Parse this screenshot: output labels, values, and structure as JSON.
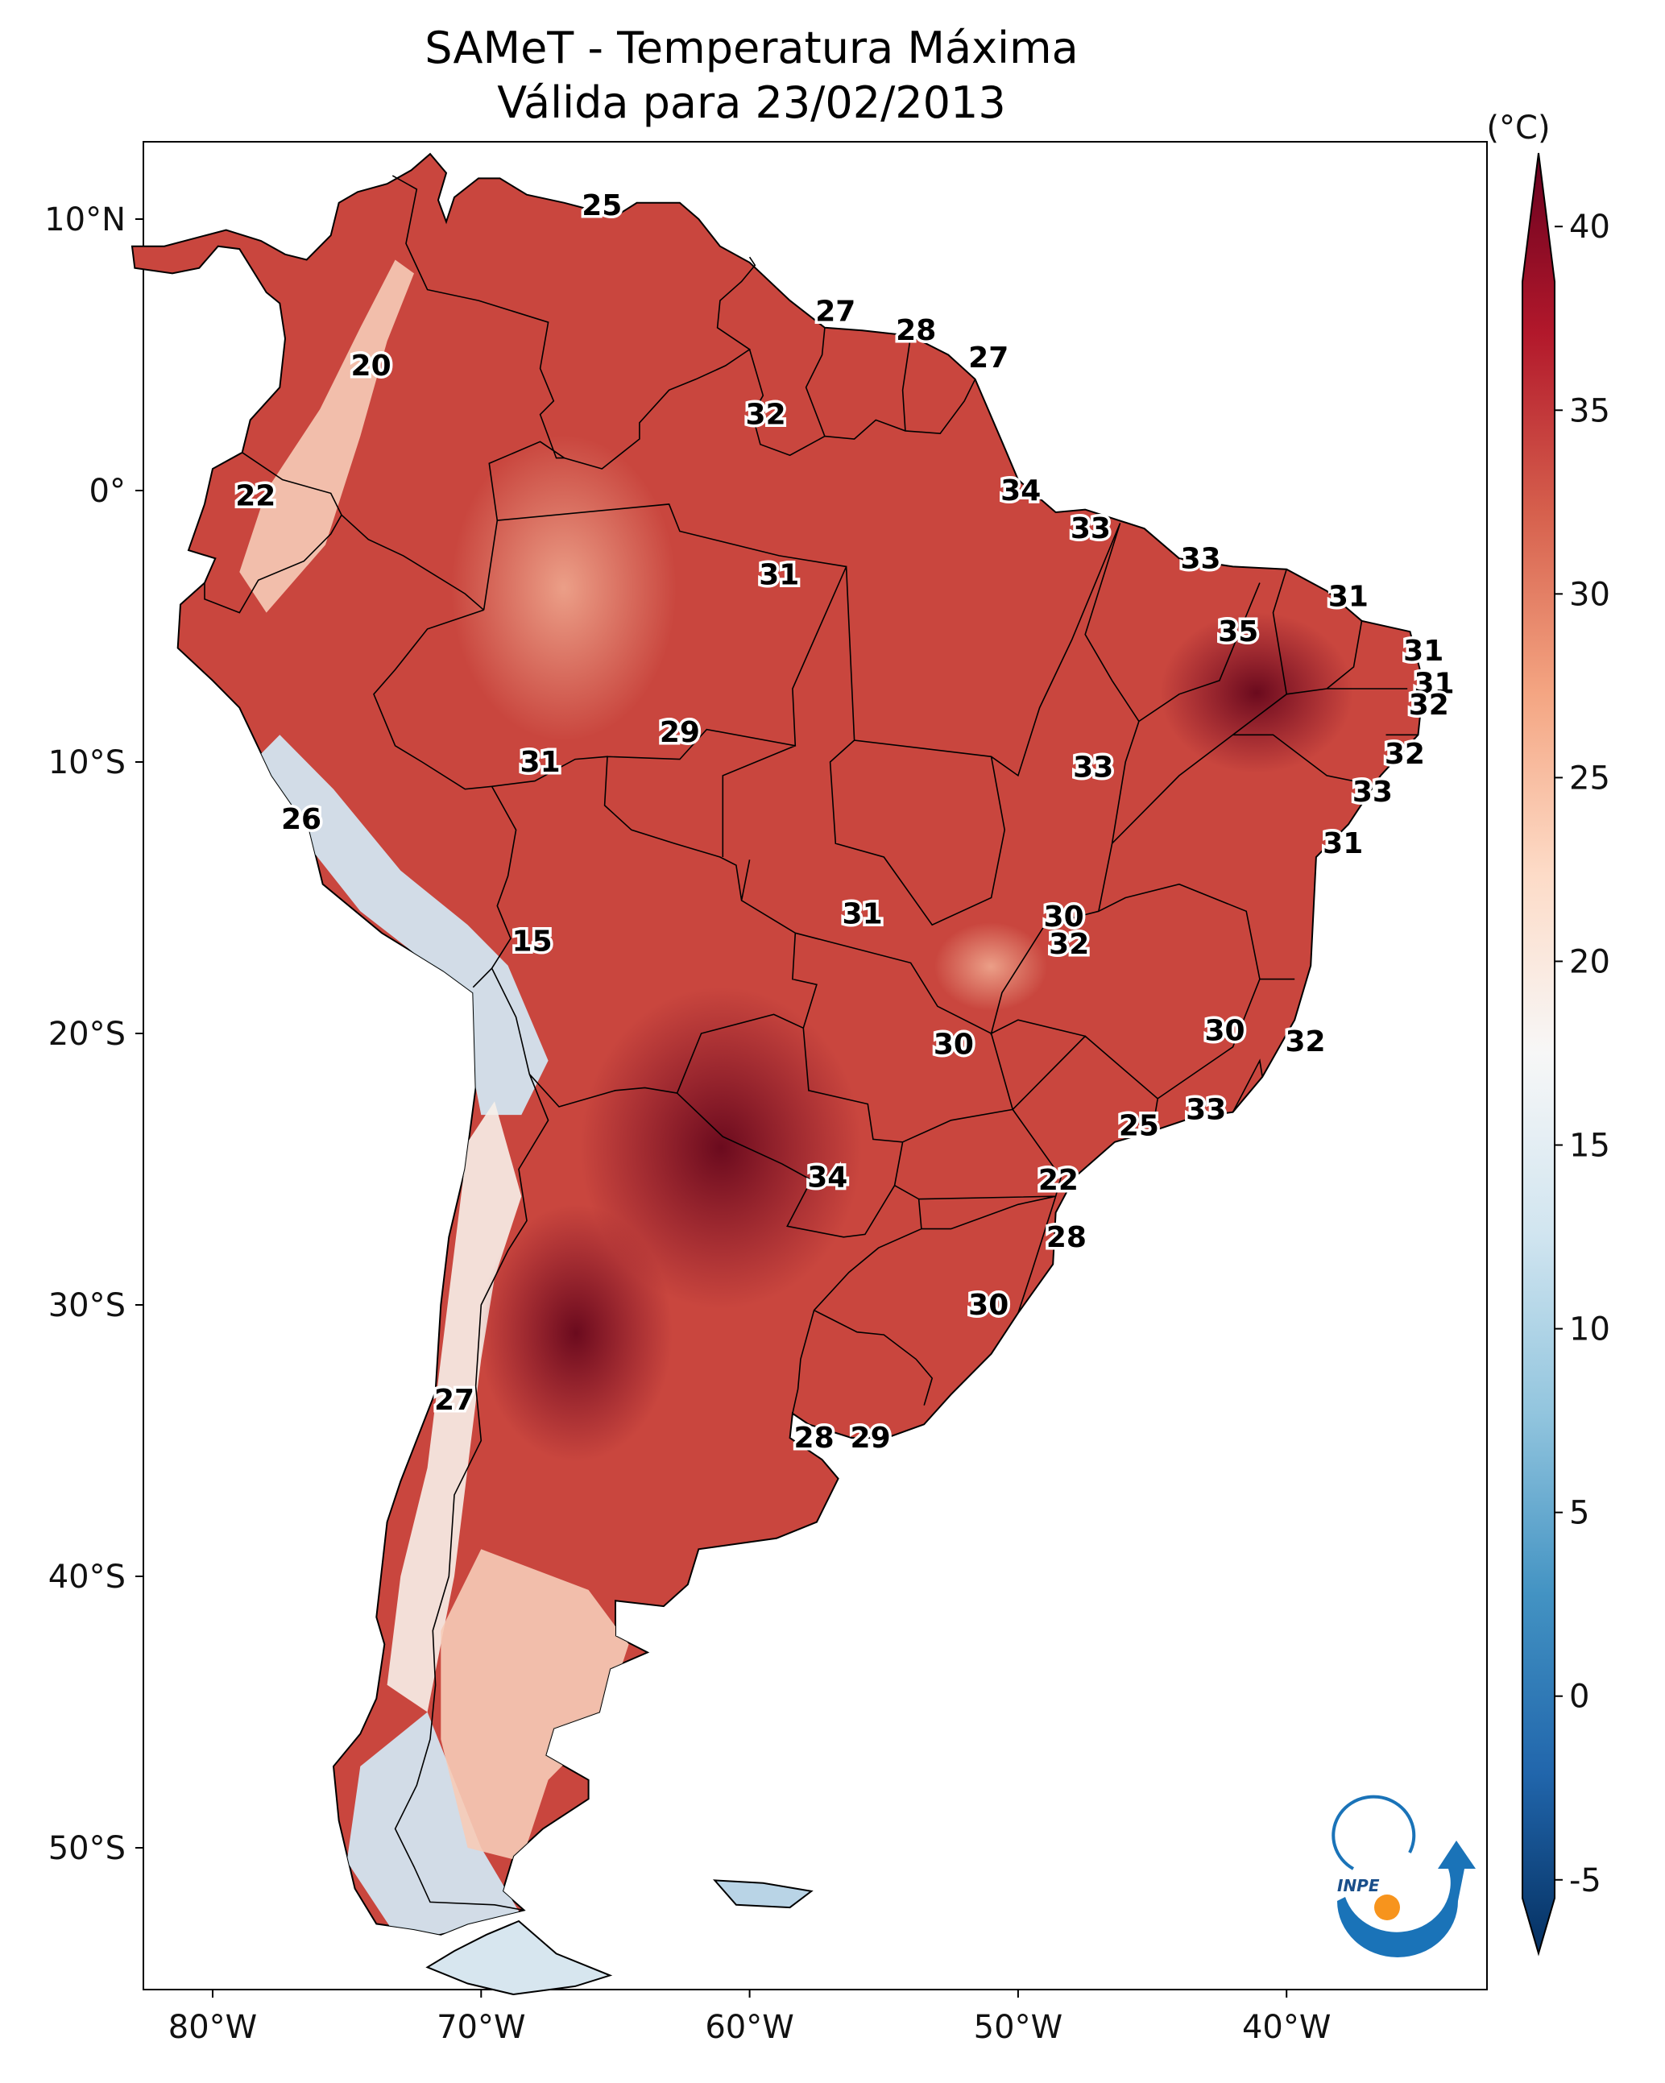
{
  "title": {
    "line1": "SAMeT - Temperatura Máxima",
    "line2": "Válida para 23/02/2013"
  },
  "axes": {
    "lon_ticks": [
      "80°W",
      "70°W",
      "60°W",
      "50°W",
      "40°W"
    ],
    "lat_ticks": [
      "10°N",
      "0°",
      "10°S",
      "20°S",
      "30°S",
      "40°S",
      "50°S"
    ]
  },
  "colorbar": {
    "unit": "(°C)",
    "ticks": [
      "40",
      "35",
      "30",
      "25",
      "20",
      "15",
      "10",
      "5",
      "0",
      "-5"
    ],
    "min": -7,
    "max": 42,
    "colors": [
      "#053061",
      "#2166ac",
      "#4393c3",
      "#92c5de",
      "#d1e5f0",
      "#f7f7f7",
      "#fddbc7",
      "#f4a582",
      "#d6604d",
      "#b2182b",
      "#67001f"
    ]
  },
  "map_labels": [
    {
      "text": "25",
      "lon": -65.5,
      "lat": 10.5
    },
    {
      "text": "20",
      "lon": -74.1,
      "lat": 4.6
    },
    {
      "text": "27",
      "lon": -56.8,
      "lat": 6.6
    },
    {
      "text": "28",
      "lon": -53.8,
      "lat": 5.9
    },
    {
      "text": "27",
      "lon": -51.1,
      "lat": 4.9
    },
    {
      "text": "32",
      "lon": -59.4,
      "lat": 2.8
    },
    {
      "text": "22",
      "lon": -78.4,
      "lat": -0.2
    },
    {
      "text": "34",
      "lon": -49.9,
      "lat": 0.0
    },
    {
      "text": "33",
      "lon": -47.3,
      "lat": -1.4
    },
    {
      "text": "33",
      "lon": -43.2,
      "lat": -2.5
    },
    {
      "text": "31",
      "lon": -58.9,
      "lat": -3.1
    },
    {
      "text": "31",
      "lon": -37.7,
      "lat": -3.9
    },
    {
      "text": "35",
      "lon": -41.8,
      "lat": -5.2
    },
    {
      "text": "31",
      "lon": -34.9,
      "lat": -5.9
    },
    {
      "text": "31",
      "lon": -34.5,
      "lat": -7.1
    },
    {
      "text": "32",
      "lon": -34.7,
      "lat": -7.9
    },
    {
      "text": "29",
      "lon": -62.6,
      "lat": -8.9
    },
    {
      "text": "32",
      "lon": -35.6,
      "lat": -9.7
    },
    {
      "text": "31",
      "lon": -67.8,
      "lat": -10.0
    },
    {
      "text": "33",
      "lon": -47.2,
      "lat": -10.2
    },
    {
      "text": "33",
      "lon": -36.8,
      "lat": -11.1
    },
    {
      "text": "26",
      "lon": -76.7,
      "lat": -12.1
    },
    {
      "text": "31",
      "lon": -37.9,
      "lat": -13.0
    },
    {
      "text": "30",
      "lon": -48.3,
      "lat": -15.7
    },
    {
      "text": "31",
      "lon": -55.8,
      "lat": -15.6
    },
    {
      "text": "32",
      "lon": -48.1,
      "lat": -16.7
    },
    {
      "text": "15",
      "lon": -68.1,
      "lat": -16.6
    },
    {
      "text": "30",
      "lon": -42.3,
      "lat": -19.9
    },
    {
      "text": "30",
      "lon": -52.4,
      "lat": -20.4
    },
    {
      "text": "32",
      "lon": -39.3,
      "lat": -20.3
    },
    {
      "text": "33",
      "lon": -43.0,
      "lat": -22.8
    },
    {
      "text": "25",
      "lon": -45.5,
      "lat": -23.4
    },
    {
      "text": "34",
      "lon": -57.1,
      "lat": -25.3
    },
    {
      "text": "22",
      "lon": -48.5,
      "lat": -25.4
    },
    {
      "text": "28",
      "lon": -48.2,
      "lat": -27.5
    },
    {
      "text": "30",
      "lon": -51.1,
      "lat": -30.0
    },
    {
      "text": "27",
      "lon": -71.0,
      "lat": -33.5
    },
    {
      "text": "28",
      "lon": -57.6,
      "lat": -34.9
    },
    {
      "text": "29",
      "lon": -55.5,
      "lat": -34.9
    }
  ],
  "logo": {
    "text": "INPE"
  }
}
